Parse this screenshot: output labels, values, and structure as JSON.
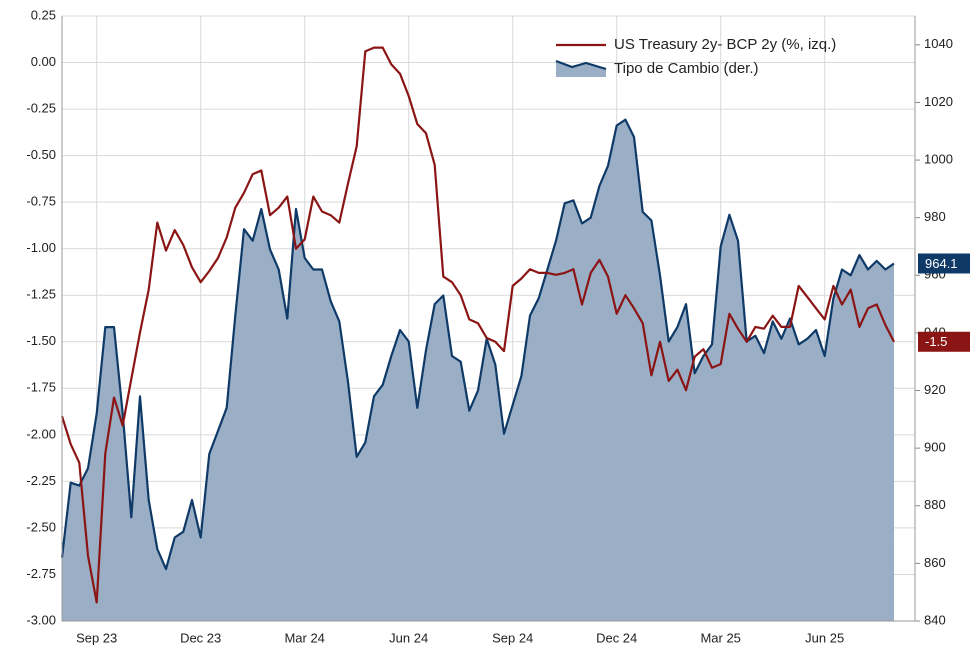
{
  "chart_data": {
    "type": "line",
    "categories": [
      null,
      null,
      null,
      null,
      "Sep 23",
      null,
      null,
      null,
      null,
      null,
      null,
      null,
      null,
      null,
      null,
      null,
      "Dec 23",
      null,
      null,
      null,
      null,
      null,
      null,
      null,
      null,
      null,
      null,
      null,
      "Mar 24",
      null,
      null,
      null,
      null,
      null,
      null,
      null,
      null,
      null,
      null,
      null,
      "Jun 24",
      null,
      null,
      null,
      null,
      null,
      null,
      null,
      null,
      null,
      null,
      null,
      "Sep 24",
      null,
      null,
      null,
      null,
      null,
      null,
      null,
      null,
      null,
      null,
      null,
      "Dec 24",
      null,
      null,
      null,
      null,
      null,
      null,
      null,
      null,
      null,
      null,
      null,
      "Mar 25",
      null,
      null,
      null,
      null,
      null,
      null,
      null,
      null,
      null,
      null,
      null,
      "Jun 25",
      null,
      null,
      null,
      null,
      null,
      null,
      null,
      null
    ],
    "series": [
      {
        "name": "US Treasury 2y- BCP 2y (%, izq.)",
        "color": "#8b1414",
        "axis": "y",
        "values": [
          -1.9,
          -2.05,
          -2.15,
          -2.65,
          -2.9,
          -2.1,
          -1.8,
          -1.95,
          -1.7,
          -1.45,
          -1.22,
          -0.86,
          -1.01,
          -0.9,
          -0.98,
          -1.1,
          -1.18,
          -1.12,
          -1.05,
          -0.94,
          -0.78,
          -0.7,
          -0.6,
          -0.58,
          -0.82,
          -0.78,
          -0.72,
          -1.0,
          -0.95,
          -0.72,
          -0.8,
          -0.82,
          -0.86,
          -0.65,
          -0.45,
          0.06,
          0.08,
          0.08,
          -0.01,
          -0.06,
          -0.18,
          -0.33,
          -0.38,
          -0.55,
          -1.15,
          -1.18,
          -1.25,
          -1.38,
          -1.4,
          -1.48,
          -1.5,
          -1.55,
          -1.2,
          -1.16,
          -1.11,
          -1.13,
          -1.13,
          -1.14,
          -1.13,
          -1.11,
          -1.3,
          -1.13,
          -1.06,
          -1.15,
          -1.35,
          -1.25,
          -1.32,
          -1.4,
          -1.68,
          -1.5,
          -1.71,
          -1.65,
          -1.76,
          -1.58,
          -1.54,
          -1.64,
          -1.62,
          -1.35,
          -1.43,
          -1.5,
          -1.42,
          -1.43,
          -1.36,
          -1.42,
          -1.42,
          -1.2,
          -1.26,
          -1.32,
          -1.38,
          -1.2,
          -1.3,
          -1.22,
          -1.42,
          -1.32,
          -1.3,
          -1.41,
          -1.5
        ]
      },
      {
        "name": "Tipo de Cambio (der.)",
        "color": "#0f3a68",
        "fill": "#9aafc6",
        "axis": "y2",
        "area": true,
        "values": [
          862,
          888,
          887,
          893,
          912,
          942,
          942,
          912,
          876,
          918,
          882,
          865,
          858,
          869,
          871,
          882,
          869,
          898,
          906,
          914,
          946,
          976,
          972,
          983,
          969,
          962,
          945,
          983,
          966,
          962,
          962,
          951,
          944,
          923,
          897,
          902,
          918,
          922,
          932,
          941,
          937,
          914,
          934,
          950,
          953,
          932,
          930,
          913,
          920,
          938,
          929,
          905,
          915,
          925,
          946,
          952,
          962,
          972,
          985,
          986,
          978,
          980,
          991,
          998,
          1012,
          1014,
          1008,
          982,
          979,
          960,
          937,
          942,
          950,
          926,
          932,
          936,
          970,
          981,
          972,
          937,
          939,
          933,
          944,
          938,
          945,
          936,
          938,
          941,
          932,
          952,
          962,
          960,
          967,
          962,
          965,
          962,
          964.1
        ]
      }
    ],
    "ylim": [
      -3,
      0.25
    ],
    "yticks": [
      0.25,
      {
        "value": 0,
        "label": "0.00"
      },
      -0.25,
      {
        "value": -0.5,
        "label": "-0.50"
      },
      -0.75,
      {
        "value": -1,
        "label": "-1.00"
      },
      -1.25,
      {
        "value": -1.5,
        "label": "-1.50"
      },
      -1.75,
      {
        "value": -2,
        "label": "-2.00"
      },
      -2.25,
      {
        "value": -2.5,
        "label": "-2.50"
      },
      -2.75,
      {
        "value": -3,
        "label": "-3.00"
      }
    ],
    "y2lim": [
      840,
      1050
    ],
    "y2ticks": [
      840,
      860,
      880,
      900,
      920,
      940,
      960,
      980,
      1000,
      1020,
      1040
    ],
    "grid": true,
    "legend": "top-right"
  }
}
